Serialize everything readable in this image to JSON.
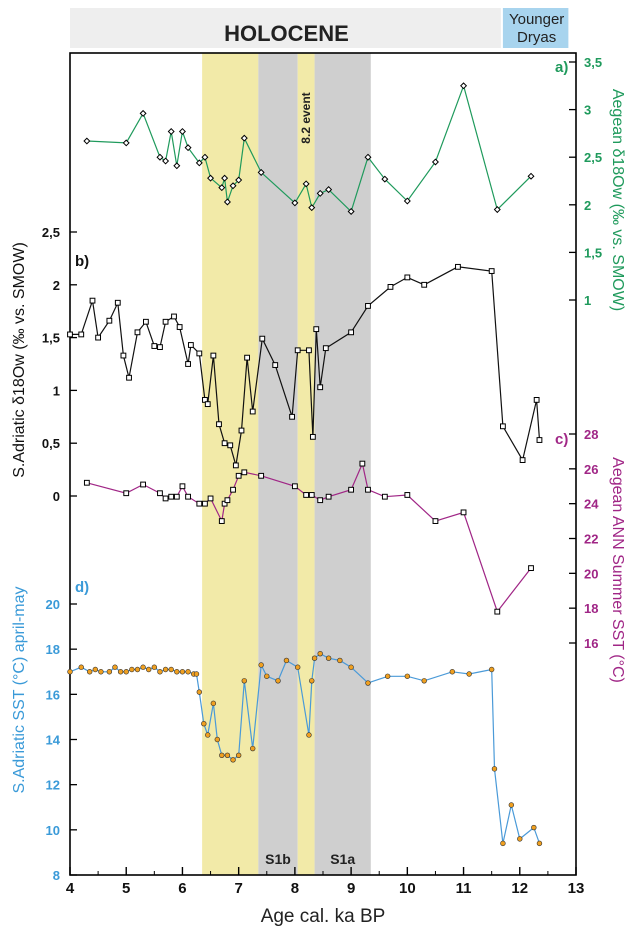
{
  "chart_data": {
    "type": "line",
    "xlabel": "Age cal. ka BP",
    "xlim": [
      4,
      13
    ],
    "x_ticks": [
      "4",
      "5",
      "6",
      "7",
      "8",
      "9",
      "10",
      "11",
      "12",
      "13"
    ],
    "periods": [
      {
        "label": "HOLOCENE",
        "from": 4,
        "to": 11.7,
        "color": "#eeeeee"
      },
      {
        "label_lines": [
          "Younger",
          "Dryas"
        ],
        "from": 11.7,
        "to": 12.9,
        "color": "#a8d4ee"
      }
    ],
    "shaded_bands": [
      {
        "label": "",
        "from": 6.35,
        "to": 7.35,
        "color": "#f2eaa8"
      },
      {
        "label": "S1b",
        "from": 7.35,
        "to": 8.05,
        "color": "#cfcfcf"
      },
      {
        "label": "8.2 event",
        "from": 8.05,
        "to": 8.35,
        "color": "#f2eaa8"
      },
      {
        "label": "S1a",
        "from": 8.35,
        "to": 9.35,
        "color": "#cfcfcf"
      }
    ],
    "series": [
      {
        "panel": "a)",
        "color": "#1f9a5c",
        "marker": "diamond",
        "axis_label": "Aegean δ18Ow (‰ vs. SMOW)",
        "axis_side": "right",
        "ticks": [
          "1",
          "1,5",
          "2",
          "2,5",
          "3",
          "3,5"
        ],
        "x": [
          4.3,
          5.0,
          5.3,
          5.6,
          5.7,
          5.8,
          5.9,
          6.0,
          6.1,
          6.3,
          6.4,
          6.5,
          6.7,
          6.75,
          6.8,
          6.9,
          7.0,
          7.1,
          7.4,
          8.0,
          8.2,
          8.3,
          8.45,
          8.6,
          9.0,
          9.3,
          9.6,
          10.0,
          10.5,
          11.0,
          11.6,
          12.2
        ],
        "values": [
          2.67,
          2.65,
          2.96,
          2.5,
          2.46,
          2.77,
          2.41,
          2.77,
          2.6,
          2.44,
          2.5,
          2.28,
          2.18,
          2.28,
          2.03,
          2.2,
          2.26,
          2.7,
          2.34,
          2.02,
          2.22,
          1.97,
          2.12,
          2.16,
          1.93,
          2.5,
          2.27,
          2.04,
          2.45,
          3.25,
          1.95,
          2.3
        ]
      },
      {
        "panel": "b)",
        "color": "#111111",
        "marker": "square",
        "axis_label": "S.Adriatic δ18Ow (‰ vs. SMOW)",
        "axis_side": "left",
        "ticks": [
          "0",
          "0,5",
          "1",
          "1,5",
          "2",
          "2,5"
        ],
        "x": [
          4.0,
          4.2,
          4.4,
          4.5,
          4.7,
          4.85,
          4.95,
          5.05,
          5.2,
          5.35,
          5.5,
          5.6,
          5.7,
          5.85,
          5.95,
          6.1,
          6.15,
          6.3,
          6.4,
          6.45,
          6.55,
          6.65,
          6.75,
          6.85,
          6.95,
          7.05,
          7.15,
          7.25,
          7.42,
          7.65,
          7.95,
          8.05,
          8.25,
          8.32,
          8.38,
          8.45,
          8.55,
          9.0,
          9.3,
          9.7,
          10.0,
          10.3,
          10.9,
          11.5,
          11.7,
          12.05,
          12.3,
          12.35
        ],
        "values": [
          1.53,
          1.53,
          1.85,
          1.5,
          1.66,
          1.83,
          1.33,
          1.12,
          1.55,
          1.65,
          1.42,
          1.41,
          1.65,
          1.7,
          1.6,
          1.25,
          1.43,
          1.35,
          0.91,
          0.87,
          1.33,
          0.68,
          0.5,
          0.48,
          0.29,
          0.62,
          1.31,
          0.8,
          1.49,
          1.24,
          0.75,
          1.38,
          1.38,
          0.56,
          1.58,
          1.03,
          1.4,
          1.55,
          1.8,
          1.98,
          2.07,
          2.0,
          2.17,
          2.13,
          0.66,
          0.34,
          0.91,
          0.53
        ]
      },
      {
        "panel": "c)",
        "color": "#a02686",
        "marker": "square",
        "axis_label": "Aegean ANN Summer SST (°C)",
        "axis_side": "right",
        "ticks": [
          "16",
          "18",
          "20",
          "22",
          "24",
          "26",
          "28"
        ],
        "x": [
          4.3,
          5.0,
          5.3,
          5.6,
          5.7,
          5.8,
          5.9,
          6.0,
          6.1,
          6.3,
          6.4,
          6.5,
          6.7,
          6.75,
          6.8,
          6.9,
          7.0,
          7.1,
          7.4,
          8.0,
          8.2,
          8.3,
          8.45,
          8.6,
          9.0,
          9.2,
          9.3,
          9.6,
          10.0,
          10.5,
          11.0,
          11.6,
          12.2
        ],
        "values": [
          25.2,
          24.6,
          25.1,
          24.6,
          24.3,
          24.4,
          24.4,
          25.0,
          24.4,
          24.0,
          24.0,
          24.3,
          23.0,
          24.0,
          24.2,
          24.8,
          25.6,
          25.8,
          25.6,
          25.0,
          24.5,
          24.5,
          24.2,
          24.4,
          24.8,
          26.3,
          24.8,
          24.4,
          24.5,
          23.0,
          23.5,
          17.8,
          20.3
        ]
      },
      {
        "panel": "d)",
        "color": "#4a9ad8",
        "marker": "circle",
        "marker_fill": "#f0a020",
        "axis_label": "S.Adriatic SST (°C) april-may",
        "axis_side": "left",
        "ticks": [
          "8",
          "10",
          "12",
          "14",
          "16",
          "18",
          "20"
        ],
        "x": [
          4.0,
          4.2,
          4.35,
          4.45,
          4.55,
          4.7,
          4.8,
          4.9,
          5.0,
          5.1,
          5.2,
          5.3,
          5.4,
          5.5,
          5.6,
          5.7,
          5.8,
          5.9,
          6.0,
          6.1,
          6.2,
          6.25,
          6.3,
          6.38,
          6.45,
          6.55,
          6.62,
          6.7,
          6.8,
          6.9,
          7.0,
          7.1,
          7.25,
          7.4,
          7.5,
          7.7,
          7.85,
          8.05,
          8.25,
          8.3,
          8.35,
          8.45,
          8.6,
          8.8,
          9.0,
          9.3,
          9.65,
          10.0,
          10.3,
          10.8,
          11.1,
          11.5,
          11.55,
          11.7,
          11.85,
          12.0,
          12.25,
          12.35
        ],
        "values": [
          17.0,
          17.2,
          17.0,
          17.1,
          17.0,
          17.0,
          17.2,
          17.0,
          17.0,
          17.1,
          17.1,
          17.2,
          17.1,
          17.2,
          17.0,
          17.1,
          17.1,
          17.0,
          17.0,
          17.0,
          16.9,
          16.9,
          16.1,
          14.7,
          14.2,
          15.6,
          14.0,
          13.3,
          13.3,
          13.1,
          13.3,
          16.6,
          13.6,
          17.3,
          16.8,
          16.6,
          17.5,
          17.2,
          14.2,
          16.6,
          17.6,
          17.8,
          17.6,
          17.5,
          17.2,
          16.5,
          16.8,
          16.8,
          16.6,
          17.0,
          16.9,
          17.1,
          12.7,
          9.4,
          11.1,
          9.6,
          10.1,
          9.4
        ]
      }
    ],
    "grid": false,
    "legend": "none"
  }
}
